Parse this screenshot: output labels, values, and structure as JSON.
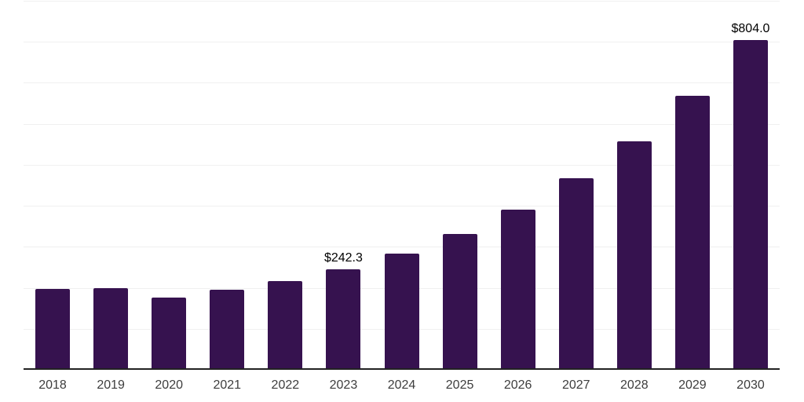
{
  "chart": {
    "accent_color": "#36124F",
    "gridline_color": "#f0f0f0",
    "axis_color": "#222222",
    "tick_color": "#3d3d3d",
    "label_color": "#000000",
    "background_color": "#ffffff"
  },
  "chart_data": {
    "type": "bar",
    "categories": [
      "2018",
      "2019",
      "2020",
      "2021",
      "2022",
      "2023",
      "2024",
      "2025",
      "2026",
      "2027",
      "2028",
      "2029",
      "2030"
    ],
    "values": [
      194,
      196,
      173,
      192,
      213,
      242.3,
      281,
      329,
      389,
      465,
      556,
      667,
      804
    ],
    "data_labels": [
      null,
      null,
      null,
      null,
      null,
      "$242.3",
      null,
      null,
      null,
      null,
      null,
      null,
      "$804.0"
    ],
    "xlabel": "",
    "ylabel": "",
    "ylim": [
      0,
      904
    ],
    "gridlines": {
      "horizontal": true,
      "line_count": 10,
      "vertical": false
    },
    "legend_position": "none",
    "y_axis_tick_labels_visible": false,
    "currency_prefix": "$"
  }
}
